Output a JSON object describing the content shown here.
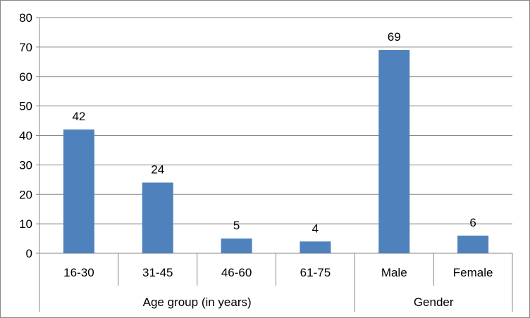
{
  "chart_data": {
    "type": "bar",
    "categories": [
      "16-30",
      "31-45",
      "46-60",
      "61-75",
      "Male",
      "Female"
    ],
    "groups": [
      {
        "label": "Age group (in years)",
        "categories": [
          "16-30",
          "31-45",
          "46-60",
          "61-75"
        ]
      },
      {
        "label": "Gender",
        "categories": [
          "Male",
          "Female"
        ]
      }
    ],
    "values": [
      42,
      24,
      5,
      4,
      69,
      6
    ],
    "data_labels": [
      "42",
      "24",
      "5",
      "4",
      "69",
      "6"
    ],
    "yticks": [
      "0",
      "10",
      "20",
      "30",
      "40",
      "50",
      "60",
      "70",
      "80"
    ],
    "ylim": [
      0,
      80
    ],
    "title": "",
    "xlabel": "",
    "ylabel": "",
    "grid": true,
    "legend": "none",
    "bar_color": "#4F81BD",
    "grid_color": "#868686"
  }
}
